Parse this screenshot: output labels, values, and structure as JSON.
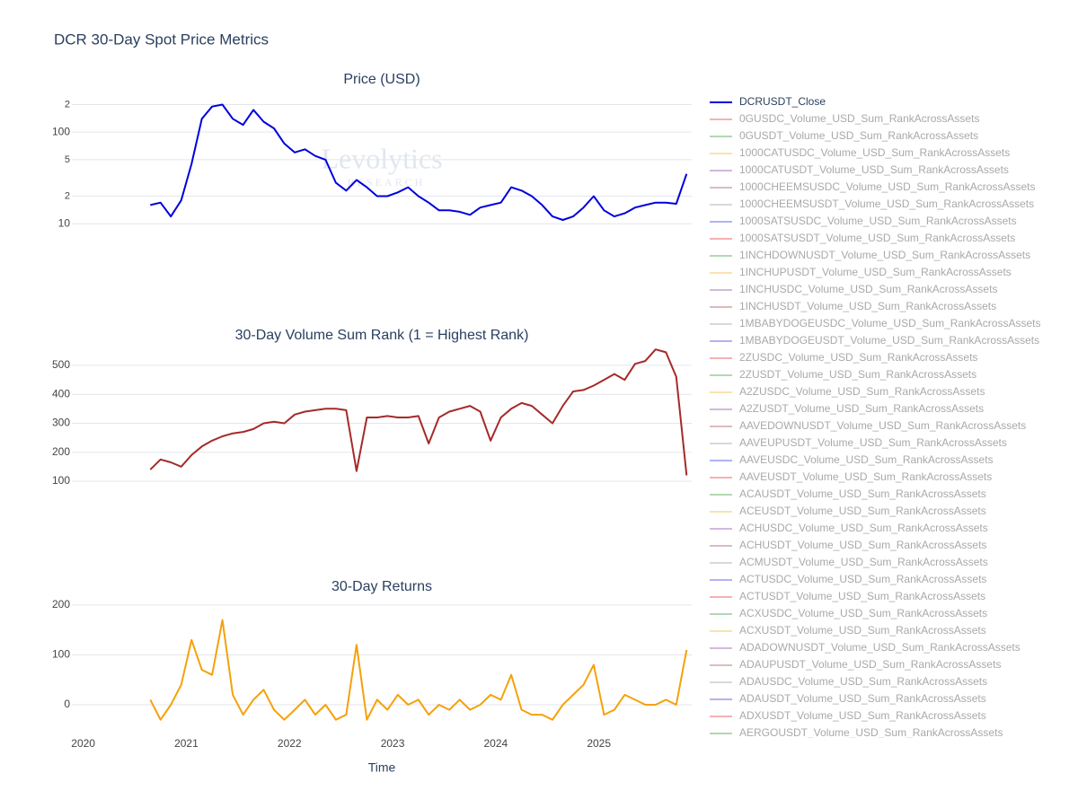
{
  "chart_data": {
    "type": "line",
    "title": "DCR 30-Day Spot Price Metrics",
    "watermark": [
      "Levolytics",
      "RESEARCH"
    ],
    "xlabel": "Time",
    "xlim": [
      2019.89,
      2025.9
    ],
    "xticks": [
      2020,
      2021,
      2022,
      2023,
      2024,
      2025
    ],
    "grid": true,
    "x": [
      2020.65,
      2020.75,
      2020.85,
      2020.95,
      2021.05,
      2021.15,
      2021.25,
      2021.35,
      2021.45,
      2021.55,
      2021.65,
      2021.75,
      2021.85,
      2021.95,
      2022.05,
      2022.15,
      2022.25,
      2022.35,
      2022.45,
      2022.55,
      2022.65,
      2022.75,
      2022.85,
      2022.95,
      2023.05,
      2023.15,
      2023.25,
      2023.35,
      2023.45,
      2023.55,
      2023.65,
      2023.75,
      2023.85,
      2023.95,
      2024.05,
      2024.15,
      2024.25,
      2024.35,
      2024.45,
      2024.55,
      2024.65,
      2024.75,
      2024.85,
      2024.95,
      2025.05,
      2025.15,
      2025.25,
      2025.35,
      2025.45,
      2025.55,
      2025.65,
      2025.75,
      2025.85
    ],
    "subplots": [
      {
        "title": "Price (USD)",
        "log_scale": true,
        "ylim": [
          7,
          290
        ],
        "yticks": [
          10,
          {
            "value": 20,
            "label": "2"
          },
          {
            "value": 50,
            "label": "5"
          },
          100,
          {
            "value": 200,
            "label": "2"
          }
        ],
        "series": [
          {
            "name": "DCRUSDT_Close",
            "color": "#0000dd",
            "values": [
              16,
              17,
              12,
              18,
              45,
              140,
              190,
              200,
              140,
              120,
              175,
              130,
              110,
              75,
              60,
              65,
              55,
              50,
              28,
              23,
              30,
              25,
              20,
              20,
              22,
              25,
              20,
              17,
              14,
              14,
              13.5,
              12.5,
              15,
              16,
              17,
              25,
              23,
              20,
              16,
              12,
              11,
              12,
              15,
              20,
              14,
              12,
              13,
              15,
              16,
              17,
              17,
              16.5,
              35
            ]
          }
        ]
      },
      {
        "title": "30-Day Volume Sum Rank (1 = Highest Rank)",
        "log_scale": false,
        "ylim": [
          72,
          568
        ],
        "yticks": [
          100,
          200,
          300,
          400,
          500
        ],
        "series": [
          {
            "color": "#a52a2a",
            "values": [
              140,
              175,
              165,
              150,
              190,
              220,
              240,
              255,
              265,
              270,
              280,
              300,
              305,
              300,
              330,
              340,
              345,
              350,
              350,
              345,
              135,
              320,
              320,
              325,
              320,
              320,
              325,
              230,
              320,
              340,
              350,
              360,
              340,
              240,
              320,
              350,
              370,
              360,
              330,
              300,
              360,
              410,
              415,
              430,
              450,
              470,
              450,
              505,
              515,
              555,
              545,
              460,
              120
            ]
          }
        ]
      },
      {
        "title": "30-Day Returns",
        "log_scale": false,
        "ylim": [
          -54,
          216
        ],
        "yticks": [
          0,
          100,
          200
        ],
        "series": [
          {
            "color": "#f5a10a",
            "values": [
              10,
              -30,
              0,
              40,
              130,
              70,
              60,
              170,
              20,
              -20,
              10,
              30,
              -10,
              -30,
              -10,
              10,
              -20,
              0,
              -30,
              -20,
              120,
              -30,
              10,
              -10,
              20,
              0,
              10,
              -20,
              0,
              -10,
              10,
              -10,
              0,
              20,
              10,
              60,
              -10,
              -20,
              -20,
              -30,
              0,
              20,
              40,
              80,
              -20,
              -10,
              20,
              10,
              0,
              0,
              10,
              0,
              110
            ]
          }
        ]
      }
    ],
    "legend_hidden": [
      {
        "name": "0GUSDC_Volume_USD_Sum_RankAcrossAssets",
        "color": "#f08080"
      },
      {
        "name": "0GUSDT_Volume_USD_Sum_RankAcrossAssets",
        "color": "#7fbf7f"
      },
      {
        "name": "1000CATUSDC_Volume_USD_Sum_RankAcrossAssets",
        "color": "#f7d27a"
      },
      {
        "name": "1000CATUSDT_Volume_USD_Sum_RankAcrossAssets",
        "color": "#b48bc4"
      },
      {
        "name": "1000CHEEMSUSDC_Volume_USD_Sum_RankAcrossAssets",
        "color": "#c89090"
      },
      {
        "name": "1000CHEEMSUSDT_Volume_USD_Sum_RankAcrossAssets",
        "color": "#c0c0c0"
      },
      {
        "name": "1000SATSUSDC_Volume_USD_Sum_RankAcrossAssets",
        "color": "#8080f0"
      },
      {
        "name": "1000SATSUSDT_Volume_USD_Sum_RankAcrossAssets",
        "color": "#f08080"
      },
      {
        "name": "1INCHDOWNUSDT_Volume_USD_Sum_RankAcrossAssets",
        "color": "#7fbf7f"
      },
      {
        "name": "1INCHUPUSDT_Volume_USD_Sum_RankAcrossAssets",
        "color": "#f7d27a"
      },
      {
        "name": "1INCHUSDC_Volume_USD_Sum_RankAcrossAssets",
        "color": "#b48bc4"
      },
      {
        "name": "1INCHUSDT_Volume_USD_Sum_RankAcrossAssets",
        "color": "#c89090"
      },
      {
        "name": "1MBABYDOGEUSDC_Volume_USD_Sum_RankAcrossAssets",
        "color": "#c0c0c0"
      },
      {
        "name": "1MBABYDOGEUSDT_Volume_USD_Sum_RankAcrossAssets",
        "color": "#8080f0"
      },
      {
        "name": "2ZUSDC_Volume_USD_Sum_RankAcrossAssets",
        "color": "#f08080"
      },
      {
        "name": "2ZUSDT_Volume_USD_Sum_RankAcrossAssets",
        "color": "#7fbf7f"
      },
      {
        "name": "A2ZUSDC_Volume_USD_Sum_RankAcrossAssets",
        "color": "#f7d27a"
      },
      {
        "name": "A2ZUSDT_Volume_USD_Sum_RankAcrossAssets",
        "color": "#b48bc4"
      },
      {
        "name": "AAVEDOWNUSDT_Volume_USD_Sum_RankAcrossAssets",
        "color": "#c89090"
      },
      {
        "name": "AAVEUPUSDT_Volume_USD_Sum_RankAcrossAssets",
        "color": "#c0c0c0"
      },
      {
        "name": "AAVEUSDC_Volume_USD_Sum_RankAcrossAssets",
        "color": "#8080f0"
      },
      {
        "name": "AAVEUSDT_Volume_USD_Sum_RankAcrossAssets",
        "color": "#f08080"
      },
      {
        "name": "ACAUSDT_Volume_USD_Sum_RankAcrossAssets",
        "color": "#7fbf7f"
      },
      {
        "name": "ACEUSDT_Volume_USD_Sum_RankAcrossAssets",
        "color": "#f7d27a"
      },
      {
        "name": "ACHUSDC_Volume_USD_Sum_RankAcrossAssets",
        "color": "#b48bc4"
      },
      {
        "name": "ACHUSDT_Volume_USD_Sum_RankAcrossAssets",
        "color": "#c89090"
      },
      {
        "name": "ACMUSDT_Volume_USD_Sum_RankAcrossAssets",
        "color": "#c0c0c0"
      },
      {
        "name": "ACTUSDC_Volume_USD_Sum_RankAcrossAssets",
        "color": "#8080f0"
      },
      {
        "name": "ACTUSDT_Volume_USD_Sum_RankAcrossAssets",
        "color": "#f08080"
      },
      {
        "name": "ACXUSDC_Volume_USD_Sum_RankAcrossAssets",
        "color": "#7fbf7f"
      },
      {
        "name": "ACXUSDT_Volume_USD_Sum_RankAcrossAssets",
        "color": "#f7d27a"
      },
      {
        "name": "ADADOWNUSDT_Volume_USD_Sum_RankAcrossAssets",
        "color": "#b48bc4"
      },
      {
        "name": "ADAUPUSDT_Volume_USD_Sum_RankAcrossAssets",
        "color": "#c89090"
      },
      {
        "name": "ADAUSDC_Volume_USD_Sum_RankAcrossAssets",
        "color": "#c0c0c0"
      },
      {
        "name": "ADAUSDT_Volume_USD_Sum_RankAcrossAssets",
        "color": "#8080f0"
      },
      {
        "name": "ADXUSDT_Volume_USD_Sum_RankAcrossAssets",
        "color": "#f08080"
      },
      {
        "name": "AERGOUSDT_Volume_USD_Sum_RankAcrossAssets",
        "color": "#7fbf7f"
      }
    ]
  }
}
